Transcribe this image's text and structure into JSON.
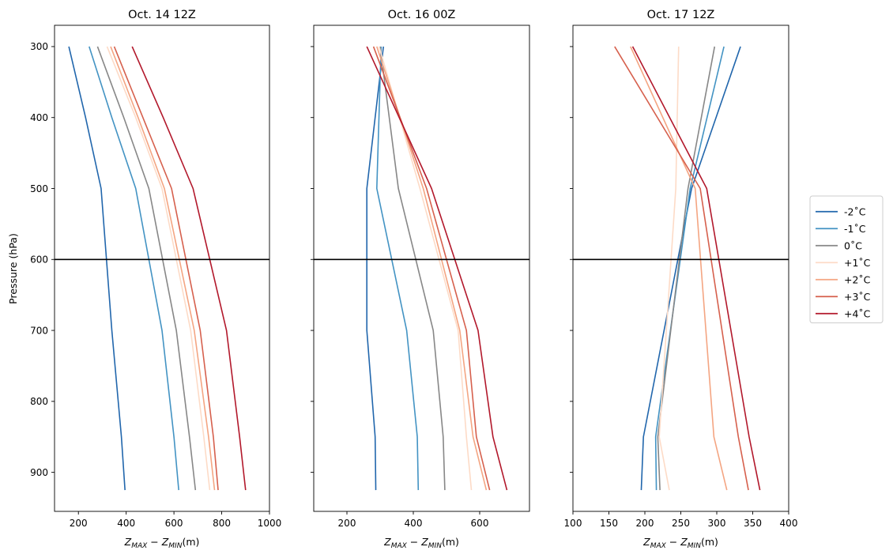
{
  "figure": {
    "ylabel": "Pressure (hPa)",
    "xlabel_main": "Z",
    "xlabel_sub_max": "MAX",
    "xlabel_minus": " − ",
    "xlabel_sub_min": "MIN",
    "xlabel_unit": "(m)"
  },
  "legend": [
    {
      "label": "-2˚C",
      "color": "#2166ac"
    },
    {
      "label": "-1˚C",
      "color": "#4393c3"
    },
    {
      "label": "0˚C",
      "color": "#878787"
    },
    {
      "label": "+1˚C",
      "color": "#fddbc7"
    },
    {
      "label": "+2˚C",
      "color": "#f4a582"
    },
    {
      "label": "+3˚C",
      "color": "#d6604d"
    },
    {
      "label": "+4˚C",
      "color": "#b2182b"
    }
  ],
  "chart_data": [
    {
      "type": "line",
      "title": "Oct. 14 12Z",
      "xlim": [
        100,
        1000
      ],
      "xticks": [
        200,
        400,
        600,
        800,
        1000
      ],
      "ylim": [
        955,
        270
      ],
      "yticks": [
        300,
        400,
        500,
        600,
        700,
        800,
        900
      ],
      "show_ytick_labels": true,
      "hline": 600,
      "series": [
        {
          "name": "-2˚C",
          "color": "#2166ac",
          "x": [
            160,
            230,
            295,
            340,
            380,
            395
          ],
          "y": [
            300,
            400,
            500,
            700,
            850,
            925
          ]
        },
        {
          "name": "-1˚C",
          "color": "#4393c3",
          "x": [
            245,
            340,
            440,
            550,
            600,
            620
          ],
          "y": [
            300,
            400,
            500,
            700,
            850,
            925
          ]
        },
        {
          "name": "0˚C",
          "color": "#878787",
          "x": [
            280,
            390,
            495,
            610,
            665,
            690
          ],
          "y": [
            300,
            400,
            500,
            700,
            850,
            925
          ]
        },
        {
          "name": "+1˚C",
          "color": "#fddbc7",
          "x": [
            320,
            440,
            550,
            670,
            725,
            750
          ],
          "y": [
            300,
            400,
            500,
            700,
            850,
            925
          ]
        },
        {
          "name": "+2˚C",
          "color": "#f4a582",
          "x": [
            335,
            450,
            560,
            685,
            745,
            770
          ],
          "y": [
            300,
            400,
            500,
            700,
            850,
            925
          ]
        },
        {
          "name": "+3˚C",
          "color": "#d6604d",
          "x": [
            350,
            470,
            590,
            710,
            765,
            785
          ],
          "y": [
            300,
            400,
            500,
            700,
            850,
            925
          ]
        },
        {
          "name": "+4˚C",
          "color": "#b2182b",
          "x": [
            425,
            555,
            680,
            820,
            875,
            900
          ],
          "y": [
            300,
            400,
            500,
            700,
            850,
            925
          ]
        }
      ]
    },
    {
      "type": "line",
      "title": "Oct. 16 00Z",
      "xlim": [
        100,
        750
      ],
      "xticks": [
        200,
        400,
        600
      ],
      "ylim": [
        955,
        270
      ],
      "yticks": [
        300,
        400,
        500,
        600,
        700,
        800,
        900
      ],
      "show_ytick_labels": false,
      "hline": 600,
      "series": [
        {
          "name": "-2˚C",
          "color": "#2166ac",
          "x": [
            310,
            260,
            260,
            285,
            287
          ],
          "y": [
            300,
            500,
            700,
            850,
            925
          ]
        },
        {
          "name": "-1˚C",
          "color": "#4393c3",
          "x": [
            303,
            290,
            380,
            412,
            415
          ],
          "y": [
            300,
            500,
            700,
            850,
            925
          ]
        },
        {
          "name": "0˚C",
          "color": "#878787",
          "x": [
            300,
            355,
            460,
            490,
            495
          ],
          "y": [
            300,
            500,
            700,
            850,
            925
          ]
        },
        {
          "name": "+1˚C",
          "color": "#fddbc7",
          "x": [
            297,
            420,
            535,
            560,
            575
          ],
          "y": [
            300,
            500,
            700,
            850,
            925
          ]
        },
        {
          "name": "+2˚C",
          "color": "#f4a582",
          "x": [
            290,
            430,
            540,
            580,
            620
          ],
          "y": [
            300,
            500,
            700,
            850,
            925
          ]
        },
        {
          "name": "+3˚C",
          "color": "#d6604d",
          "x": [
            280,
            440,
            560,
            590,
            630
          ],
          "y": [
            300,
            500,
            700,
            850,
            925
          ]
        },
        {
          "name": "+4˚C",
          "color": "#b2182b",
          "x": [
            260,
            455,
            595,
            640,
            682
          ],
          "y": [
            300,
            500,
            700,
            850,
            925
          ]
        }
      ]
    },
    {
      "type": "line",
      "title": "Oct. 17 12Z",
      "xlim": [
        100,
        400
      ],
      "xticks": [
        100,
        150,
        200,
        250,
        300,
        350,
        400
      ],
      "ylim": [
        955,
        270
      ],
      "yticks": [
        300,
        400,
        500,
        600,
        700,
        800,
        900
      ],
      "show_ytick_labels": false,
      "hline": 600,
      "series": [
        {
          "name": "-2˚C",
          "color": "#2166ac",
          "x": [
            333,
            265,
            198,
            195
          ],
          "y": [
            300,
            500,
            850,
            925
          ]
        },
        {
          "name": "-1˚C",
          "color": "#4393c3",
          "x": [
            310,
            263,
            215,
            216
          ],
          "y": [
            300,
            500,
            850,
            925
          ]
        },
        {
          "name": "0˚C",
          "color": "#878787",
          "x": [
            297,
            260,
            218,
            221
          ],
          "y": [
            300,
            500,
            850,
            925
          ]
        },
        {
          "name": "+1˚C",
          "color": "#fddbc7",
          "x": [
            247,
            243,
            220,
            234
          ],
          "y": [
            300,
            500,
            850,
            925
          ]
        },
        {
          "name": "+2˚C",
          "color": "#f4a582",
          "x": [
            180,
            270,
            296,
            314
          ],
          "y": [
            300,
            500,
            850,
            925
          ]
        },
        {
          "name": "+3˚C",
          "color": "#d6604d",
          "x": [
            158,
            277,
            330,
            344
          ],
          "y": [
            300,
            500,
            850,
            925
          ]
        },
        {
          "name": "+4˚C",
          "color": "#b2182b",
          "x": [
            183,
            286,
            345,
            360
          ],
          "y": [
            300,
            500,
            850,
            925
          ]
        }
      ]
    }
  ]
}
